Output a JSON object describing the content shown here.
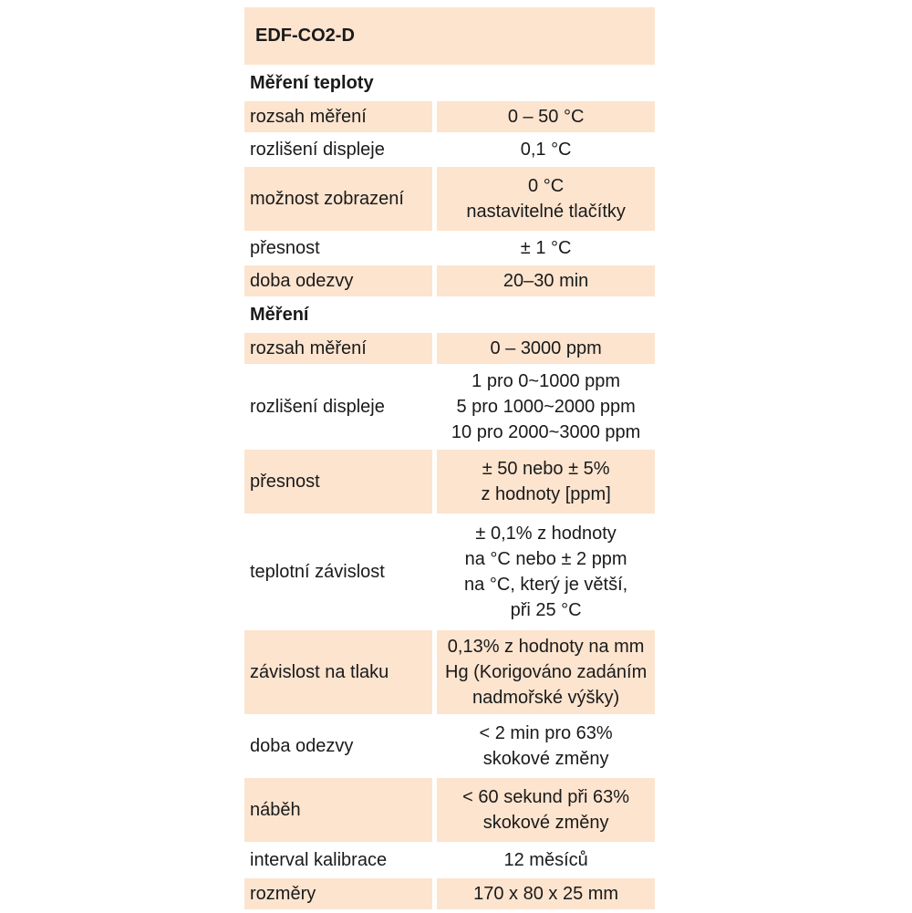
{
  "title": "EDF-CO2-D",
  "sections": [
    {
      "heading": "Měření teploty",
      "rows": [
        {
          "label": "rozsah měření",
          "value": [
            "0 – 50 °C"
          ]
        },
        {
          "label": "rozlišení displeje",
          "value": [
            "0,1 °C"
          ]
        },
        {
          "label": "možnost zobrazení",
          "value": [
            "0 °C",
            "nastavitelné tlačítky"
          ]
        },
        {
          "label": "přesnost",
          "value": [
            "± 1 °C"
          ]
        },
        {
          "label": "doba odezvy",
          "value": [
            "20–30 min"
          ]
        }
      ]
    },
    {
      "heading": "Měření",
      "rows": [
        {
          "label": "rozsah měření",
          "value": [
            "0 – 3000 ppm"
          ]
        },
        {
          "label": "rozlišení displeje",
          "value": [
            "1 pro 0~1000 ppm",
            "5 pro 1000~2000 ppm",
            "10 pro 2000~3000 ppm"
          ]
        },
        {
          "label": "přesnost",
          "value": [
            "± 50 nebo ± 5%",
            "z hodnoty [ppm]"
          ]
        },
        {
          "label": "teplotní závislost",
          "value": [
            "± 0,1% z hodnoty",
            "na °C nebo ± 2 ppm",
            "na °C, který je větší,",
            "při 25 °C"
          ]
        },
        {
          "label": "závislost na tlaku",
          "value": [
            "0,13% z hodnoty na mm",
            "Hg (Korigováno zadáním",
            "nadmořské výšky)"
          ]
        },
        {
          "label": "doba odezvy",
          "value": [
            "< 2 min pro 63%",
            "skokové změny"
          ]
        },
        {
          "label": "náběh",
          "value": [
            "< 60 sekund při 63%",
            "skokové změny"
          ]
        },
        {
          "label": "interval kalibrace",
          "value": [
            "12 měsíců"
          ]
        },
        {
          "label": "rozměry",
          "value": [
            "170 x 80 x 25 mm"
          ]
        }
      ]
    }
  ],
  "colors": {
    "shade": "#fce4cf",
    "text": "#1a1a1a"
  }
}
